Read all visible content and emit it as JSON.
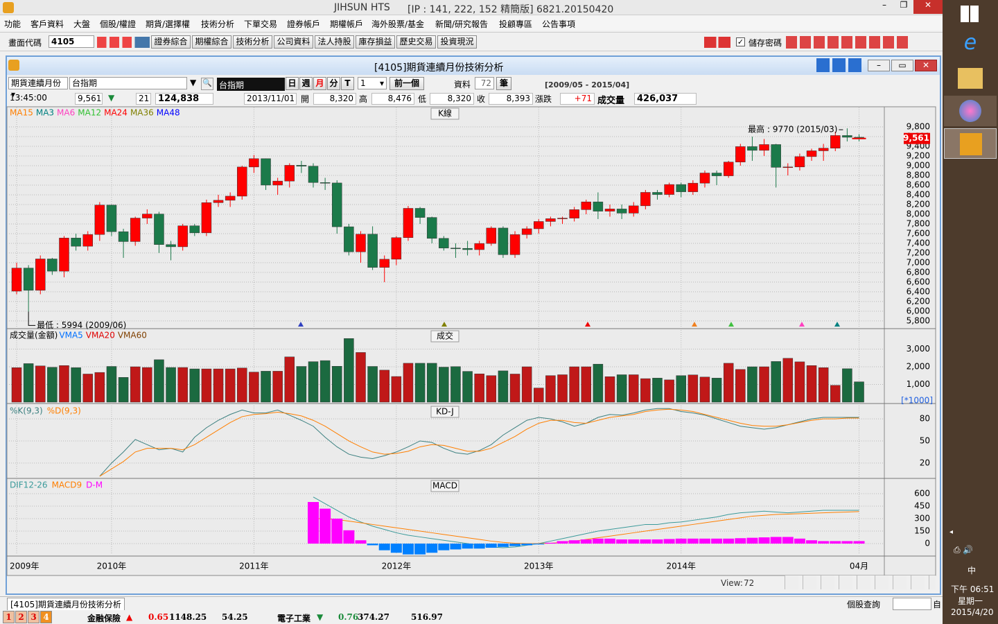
{
  "window": {
    "title": "JIHSUN HTS",
    "info": "[IP : 141, 222, 152 精簡版] 6821.20150420"
  },
  "menu": [
    "功能",
    "客戶資料",
    "大盤",
    "個股/權證",
    "期貨/選擇權",
    "技術分析",
    "下單交易",
    "證券帳戶",
    "期權帳戶",
    "海外股票/基金",
    "新聞/研究報告",
    "投顧專區",
    "公告事項"
  ],
  "toolbar": {
    "code_label": "畫面代碼",
    "code": "4105",
    "buttons": [
      "證券綜合",
      "期權綜合",
      "技術分析",
      "公司資料",
      "法人持股",
      "庫存損益",
      "歷史交易",
      "投資現況"
    ],
    "save_password": "儲存密碼"
  },
  "subwindow": {
    "title": "[4105]期貨連續月份技術分析"
  },
  "controls": {
    "product_type": "期貨連續月份",
    "product": "台指期",
    "product_name": "台指期",
    "periods": [
      "日",
      "週",
      "月",
      "分",
      "T"
    ],
    "period_count": "1",
    "prev": "前一個",
    "data_label": "資料",
    "data_count": "72",
    "data_unit": "筆",
    "range": "[2009/05 - 2015/04]"
  },
  "quote": {
    "time": "13:45:00",
    "price": "9,561",
    "direction": "▼",
    "change": "21",
    "volume": "124,838",
    "date": "2013/11/01",
    "open_label": "開",
    "open": "8,320",
    "high_label": "高",
    "high": "8,476",
    "low_label": "低",
    "low": "8,320",
    "close_label": "收",
    "close": "8,393",
    "diff_label": "漲跌",
    "diff": "+71",
    "vol_label": "成交量",
    "vol": "426,037"
  },
  "chart_data": [
    {
      "type": "candlestick",
      "title": "K線",
      "legend": [
        {
          "name": "MA15",
          "color": "#ff7f00"
        },
        {
          "name": "MA3",
          "color": "#008080"
        },
        {
          "name": "MA6",
          "color": "#ff40c0"
        },
        {
          "name": "MA12",
          "color": "#30c030"
        },
        {
          "name": "MA24",
          "color": "#ff0000"
        },
        {
          "name": "MA36",
          "color": "#808000"
        },
        {
          "name": "MA48",
          "color": "#0000ff"
        }
      ],
      "up_color": "#ff0000",
      "down_color": "#1b7a4a",
      "open": [
        6414,
        6890,
        6432,
        7078,
        6826,
        7509,
        7340,
        7582,
        8188,
        7640,
        7436,
        7920,
        8004,
        7374,
        7329,
        7761,
        7616,
        8238,
        8287,
        8372,
        8973,
        9145,
        8600,
        8683,
        9008,
        8990,
        8653,
        8644,
        7741,
        7225,
        7588,
        6904,
        7072,
        7517,
        8121,
        7933,
        7502,
        7302,
        7296,
        7270,
        7397,
        7715,
        7166,
        7580,
        7700,
        7850,
        7908,
        7919,
        8094,
        8254,
        8062,
        8108,
        8022,
        8173,
        8450,
        8406,
        8612,
        8462,
        8640,
        8849,
        8791,
        9075,
        9393,
        9316,
        9436,
        8966,
        8974,
        9187,
        9307,
        9361,
        9622,
        9586
      ],
      "high": [
        7000,
        6950,
        7150,
        7100,
        7550,
        7600,
        7650,
        8250,
        8200,
        7700,
        7950,
        8100,
        8050,
        7450,
        7800,
        7800,
        8300,
        8400,
        8450,
        9000,
        9220,
        9150,
        8750,
        9050,
        9100,
        9050,
        8750,
        8700,
        7800,
        7650,
        7750,
        7150,
        7550,
        8170,
        8150,
        7950,
        7550,
        7400,
        7450,
        7450,
        7750,
        7750,
        7650,
        7750,
        7900,
        7950,
        7950,
        8150,
        8300,
        8450,
        8200,
        8200,
        8250,
        8500,
        8500,
        8650,
        8650,
        8700,
        8900,
        8900,
        9100,
        9450,
        9600,
        9550,
        9450,
        9050,
        9250,
        9350,
        9450,
        9700,
        9770,
        9650
      ],
      "low": [
        6350,
        5994,
        6350,
        6750,
        6700,
        7250,
        7250,
        7450,
        7550,
        7100,
        7350,
        7800,
        7200,
        7050,
        7250,
        7550,
        7550,
        8150,
        8150,
        8300,
        8850,
        8500,
        8400,
        8550,
        8850,
        8550,
        8500,
        7600,
        7150,
        7000,
        6850,
        6600,
        6950,
        7450,
        7800,
        7400,
        7250,
        7100,
        7150,
        7150,
        7350,
        7100,
        7100,
        7500,
        7600,
        7750,
        7800,
        7850,
        8000,
        7900,
        7950,
        7900,
        7950,
        8100,
        8300,
        8350,
        8350,
        8400,
        8550,
        8600,
        8750,
        9000,
        9100,
        9200,
        8550,
        8800,
        8900,
        9100,
        9100,
        9300,
        9500,
        9500
      ],
      "close": [
        6890,
        6432,
        7078,
        6826,
        7509,
        7340,
        7582,
        8188,
        7640,
        7436,
        7920,
        8004,
        7374,
        7329,
        7761,
        7616,
        8238,
        8287,
        8372,
        8973,
        9145,
        8600,
        8683,
        9008,
        8990,
        8653,
        8644,
        7741,
        7225,
        7588,
        6904,
        7072,
        7517,
        8121,
        7933,
        7502,
        7302,
        7296,
        7270,
        7397,
        7715,
        7166,
        7580,
        7700,
        7850,
        7908,
        7919,
        8094,
        8254,
        8062,
        8108,
        8022,
        8173,
        8450,
        8406,
        8612,
        8462,
        8640,
        8849,
        8791,
        9075,
        9393,
        9316,
        9436,
        8966,
        8974,
        9187,
        9307,
        9361,
        9622,
        9586,
        9561
      ],
      "ylim": [
        5670,
        10200
      ],
      "yticks": [
        {
          "value": 9800,
          "label": "9,800"
        },
        {
          "value": 9600,
          "label": "9,600"
        },
        {
          "value": 9400,
          "label": "9,400"
        },
        {
          "value": 9200,
          "label": "9,200"
        },
        {
          "value": 9000,
          "label": "9,000"
        },
        {
          "value": 8800,
          "label": "8,800"
        },
        {
          "value": 8600,
          "label": "8,600"
        },
        {
          "value": 8400,
          "label": "8,400"
        },
        {
          "value": 8200,
          "label": "8,200"
        },
        {
          "value": 8000,
          "label": "8,000"
        },
        {
          "value": 7800,
          "label": "7,800"
        },
        {
          "value": 7600,
          "label": "7,600"
        },
        {
          "value": 7400,
          "label": "7,400"
        },
        {
          "value": 7200,
          "label": "7,200"
        },
        {
          "value": 7000,
          "label": "7,000"
        },
        {
          "value": 6800,
          "label": "6,800"
        },
        {
          "value": 6600,
          "label": "6,600"
        },
        {
          "value": 6400,
          "label": "6,400"
        },
        {
          "value": 6200,
          "label": "6,200"
        },
        {
          "value": 6000,
          "label": "6,000"
        },
        {
          "value": 5800,
          "label": "5,800"
        }
      ],
      "last": {
        "value": 9561,
        "label": "9,561"
      },
      "annotations": [
        "最高 : 9770 (2015/03)",
        "最低 : 5994 (2009/06)"
      ]
    },
    {
      "type": "bar",
      "title": "成交",
      "label": "成交量(金額)",
      "legend": [
        {
          "name": "VMA5",
          "color": "#0070ff"
        },
        {
          "name": "VMA20",
          "color": "#e00000"
        },
        {
          "name": "VMA60",
          "color": "#804000"
        }
      ],
      "values": [
        1950,
        2180,
        2050,
        1970,
        2070,
        1950,
        1590,
        1680,
        2020,
        1400,
        2000,
        1960,
        2400,
        1960,
        1960,
        1880,
        1880,
        1880,
        1880,
        1930,
        1700,
        1750,
        1750,
        2560,
        2020,
        2290,
        2350,
        2030,
        3600,
        2810,
        2020,
        1810,
        1450,
        2200,
        2200,
        2200,
        1980,
        2010,
        1740,
        1600,
        1500,
        1770,
        1590,
        2000,
        800,
        1500,
        1550,
        2000,
        2000,
        2150,
        1440,
        1550,
        1550,
        1330,
        1360,
        1260,
        1500,
        1540,
        1420,
        1360,
        2200,
        1850,
        2000,
        2000,
        2300,
        2480,
        2280,
        2070,
        1950,
        950,
        1890,
        1150
      ],
      "ylim": [
        0,
        4080
      ],
      "yticks": [
        {
          "value": 3000,
          "label": "3,000"
        },
        {
          "value": 2000,
          "label": "2,000"
        },
        {
          "value": 1000,
          "label": "1,000"
        }
      ],
      "unit": "[*1000]"
    },
    {
      "type": "line",
      "title": "KD-J",
      "series": [
        {
          "name": "%K(9,3)",
          "color": "#3c8080",
          "values": [
            null,
            null,
            null,
            null,
            null,
            null,
            null,
            2,
            20,
            35,
            52,
            45,
            38,
            40,
            35,
            55,
            68,
            78,
            86,
            92,
            88,
            88,
            92,
            85,
            78,
            70,
            55,
            42,
            32,
            28,
            26,
            30,
            35,
            42,
            50,
            48,
            40,
            34,
            32,
            37,
            45,
            58,
            68,
            78,
            82,
            80,
            76,
            70,
            74,
            82,
            86,
            85,
            88,
            92,
            94,
            94,
            90,
            88,
            85,
            80,
            75,
            70,
            68,
            66,
            68,
            72,
            76,
            80,
            82,
            82,
            82,
            82
          ]
        },
        {
          "name": "%D(9,3)",
          "color": "#ff7f00",
          "values": [
            null,
            null,
            null,
            null,
            null,
            null,
            null,
            2,
            12,
            22,
            35,
            40,
            40,
            40,
            38,
            45,
            55,
            65,
            75,
            83,
            86,
            87,
            89,
            87,
            84,
            78,
            70,
            60,
            50,
            42,
            35,
            32,
            33,
            36,
            42,
            45,
            44,
            40,
            36,
            36,
            40,
            48,
            56,
            66,
            74,
            78,
            78,
            75,
            74,
            78,
            82,
            84,
            86,
            90,
            92,
            93,
            92,
            90,
            86,
            82,
            78,
            74,
            71,
            70,
            70,
            72,
            75,
            78,
            80,
            80,
            81,
            81
          ]
        }
      ],
      "ylim": [
        1,
        98
      ],
      "yticks": [
        80,
        50,
        20
      ]
    },
    {
      "type": "combo",
      "title": "MACD",
      "series": [
        {
          "name": "DIF12-26",
          "color": "#3a9a9a",
          "values": [
            null,
            null,
            null,
            null,
            null,
            null,
            null,
            null,
            null,
            null,
            null,
            null,
            null,
            null,
            null,
            null,
            null,
            null,
            null,
            null,
            null,
            null,
            null,
            null,
            null,
            560,
            480,
            400,
            320,
            260,
            210,
            170,
            130,
            100,
            80,
            60,
            40,
            20,
            0,
            -20,
            -40,
            -50,
            -40,
            -20,
            0,
            30,
            60,
            90,
            120,
            150,
            170,
            190,
            210,
            230,
            230,
            250,
            260,
            280,
            300,
            320,
            350,
            370,
            380,
            390,
            380,
            370,
            380,
            390,
            400,
            400,
            400,
            400
          ]
        },
        {
          "name": "MACD9",
          "color": "#ff7f00",
          "values": [
            null,
            null,
            null,
            null,
            null,
            null,
            null,
            null,
            null,
            null,
            null,
            null,
            null,
            null,
            null,
            null,
            null,
            null,
            null,
            null,
            null,
            null,
            null,
            null,
            null,
            300,
            300,
            290,
            270,
            250,
            230,
            210,
            190,
            170,
            150,
            130,
            110,
            90,
            70,
            50,
            30,
            15,
            5,
            0,
            0,
            5,
            15,
            30,
            50,
            70,
            90,
            110,
            130,
            150,
            170,
            190,
            210,
            230,
            250,
            270,
            290,
            310,
            330,
            340,
            350,
            355,
            360,
            365,
            370,
            375,
            380,
            385
          ]
        },
        {
          "name": "D-M",
          "color": "#ff00ff",
          "negative_color": "#0080ff",
          "bars": true,
          "values": [
            null,
            null,
            null,
            null,
            null,
            null,
            null,
            null,
            null,
            null,
            null,
            null,
            null,
            null,
            null,
            null,
            null,
            null,
            null,
            null,
            null,
            null,
            null,
            null,
            null,
            500,
            420,
            300,
            160,
            40,
            -20,
            -80,
            -110,
            -130,
            -130,
            -110,
            -80,
            -70,
            -60,
            -60,
            -50,
            -40,
            -30,
            -20,
            -10,
            10,
            30,
            40,
            50,
            60,
            60,
            50,
            50,
            50,
            50,
            55,
            60,
            60,
            60,
            60,
            60,
            65,
            70,
            75,
            80,
            80,
            60,
            40,
            30,
            30,
            30,
            30
          ]
        }
      ],
      "ylim": [
        -133,
        767
      ],
      "yticks": [
        600,
        450,
        300,
        150,
        0
      ],
      "xticks": [
        {
          "value": 0,
          "label": "2009年"
        },
        {
          "value": 8,
          "label": "2010年"
        },
        {
          "value": 20,
          "label": "2011年"
        },
        {
          "value": 32,
          "label": "2012年"
        },
        {
          "value": 44,
          "label": "2013年"
        },
        {
          "value": 56,
          "label": "2014年"
        },
        {
          "value": 71,
          "label": "04月"
        }
      ]
    }
  ],
  "statusbar": {
    "view_label": "View:",
    "view": "72"
  },
  "tab": "[4105]期貨連續月份技術分析",
  "lookup": "個股查詢",
  "lookup_button": "自",
  "ticker": {
    "pages": [
      "1",
      "2",
      "3",
      "4"
    ],
    "sector1": "金融保險",
    "arrow1": "▲",
    "change1": "0.65",
    "index1": "1148.25",
    "value1": "54.25",
    "sector2": "電子工業",
    "arrow2": "▼",
    "change2": "0.76",
    "index2": "374.27",
    "value2": "516.97"
  },
  "taskbar": {
    "ime": "中",
    "time": "下午 06:51",
    "weekday": "星期一",
    "date": "2015/4/20"
  }
}
